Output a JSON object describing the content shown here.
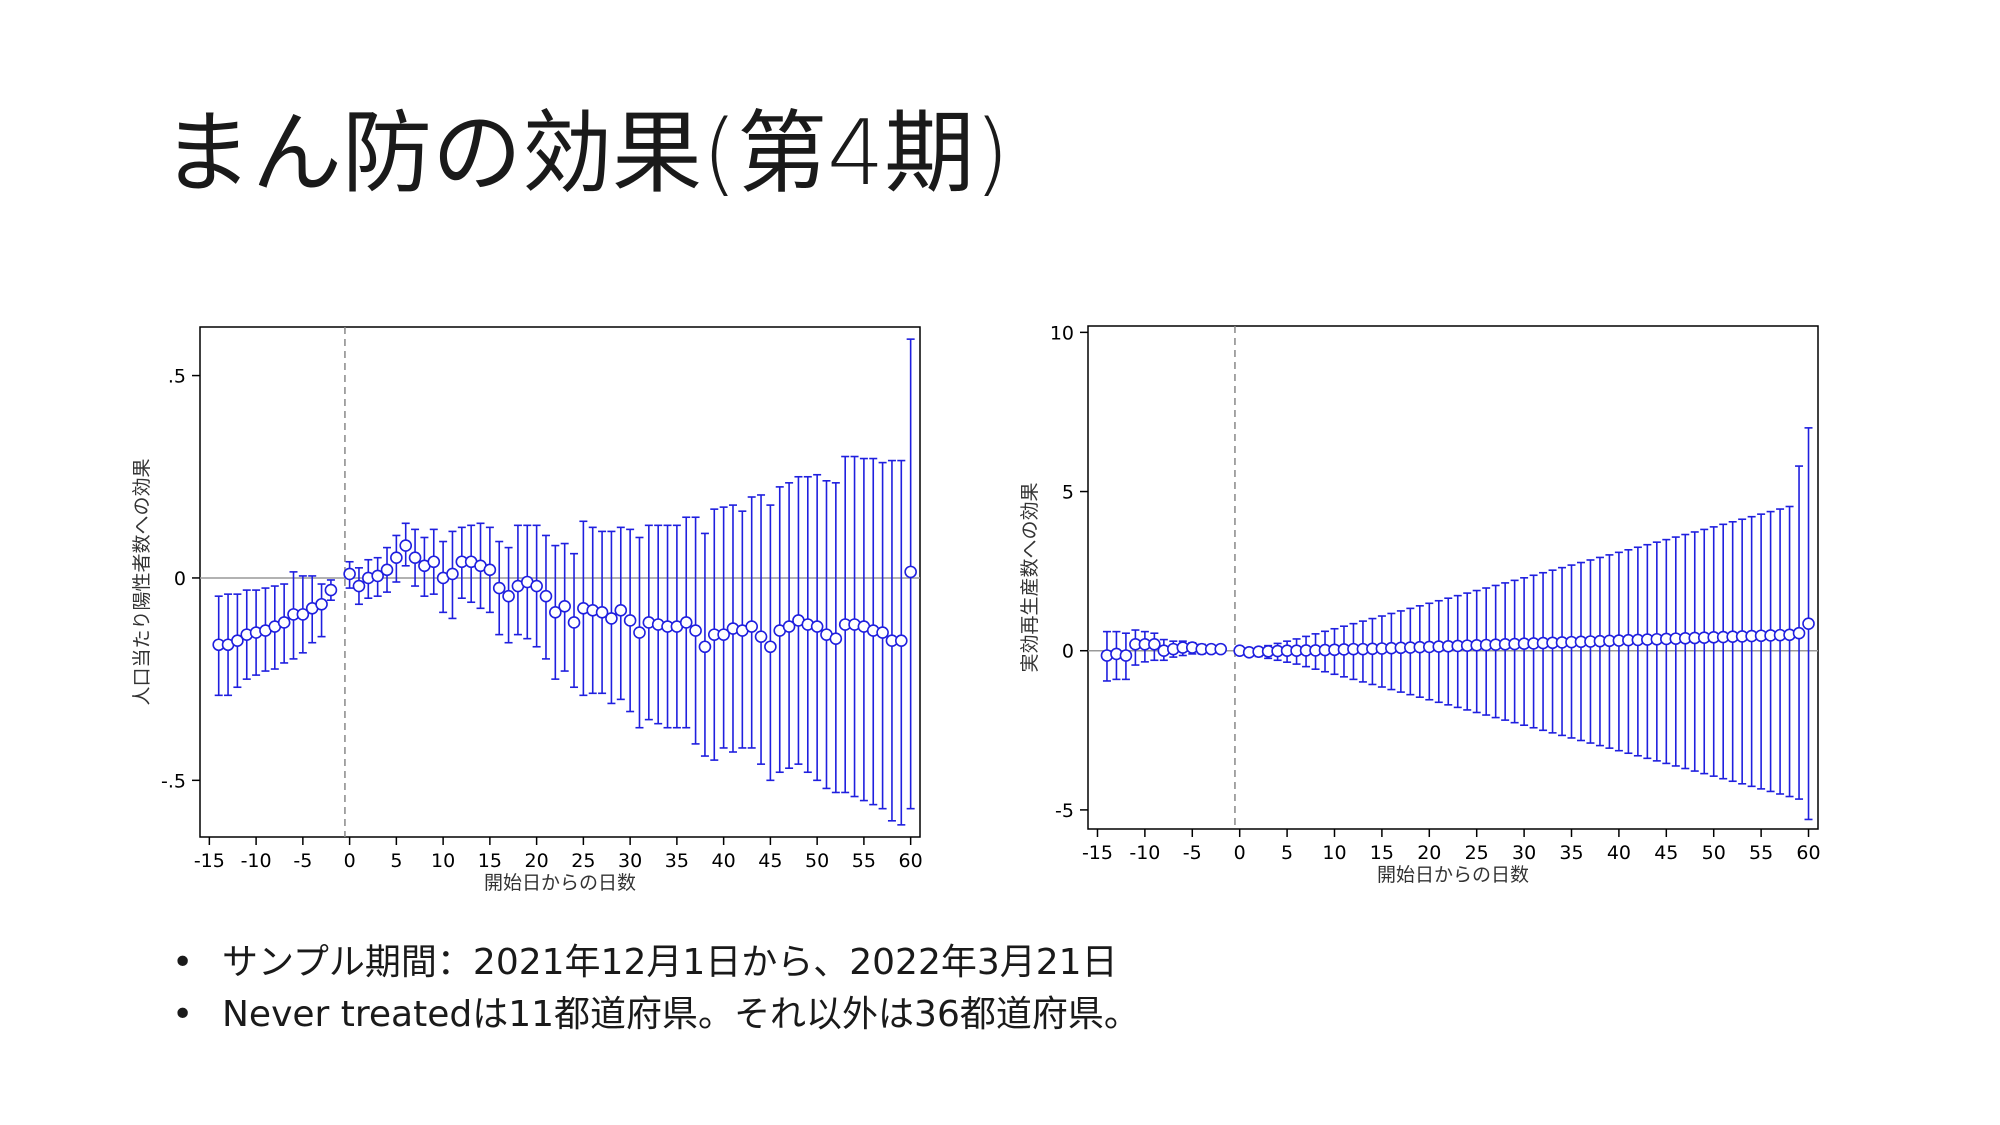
{
  "slide": {
    "title": "まん防の効果(第4期)"
  },
  "notes": [
    "サンプル期間：2021年12月1日から、2022年3月21日",
    "Never treatedは11都道府県。それ以外は36都道府県。"
  ],
  "colors": {
    "series": "#1f1fdf",
    "zero_line": "#999999",
    "event_line": "#888888",
    "axis": "#000000"
  },
  "chart_data": [
    {
      "type": "scatter",
      "xlabel": "開始日からの日数",
      "ylabel": "人口当たり陽性者数への効果",
      "xlim": [
        -16,
        61
      ],
      "ylim": [
        -0.64,
        0.62
      ],
      "x_ticks": [
        -15,
        -10,
        -5,
        0,
        5,
        10,
        15,
        20,
        25,
        30,
        35,
        40,
        45,
        50,
        55,
        60
      ],
      "x_tick_labels": [
        "-15",
        "-10",
        "-5",
        "0",
        "5",
        "10",
        "15",
        "20",
        "25",
        "30",
        "35",
        "40",
        "45",
        "50",
        "55",
        "60"
      ],
      "y_ticks": [
        -0.5,
        0,
        0.5
      ],
      "y_tick_labels": [
        "-.5",
        "0",
        ".5"
      ],
      "event_line_x": -0.5,
      "reference_y": 0,
      "x": [
        -14,
        -13,
        -12,
        -11,
        -10,
        -9,
        -8,
        -7,
        -6,
        -5,
        -4,
        -3,
        -2,
        0,
        1,
        2,
        3,
        4,
        5,
        6,
        7,
        8,
        9,
        10,
        11,
        12,
        13,
        14,
        15,
        16,
        17,
        18,
        19,
        20,
        21,
        22,
        23,
        24,
        25,
        26,
        27,
        28,
        29,
        30,
        31,
        32,
        33,
        34,
        35,
        36,
        37,
        38,
        39,
        40,
        41,
        42,
        43,
        44,
        45,
        46,
        47,
        48,
        49,
        50,
        51,
        52,
        53,
        54,
        55,
        56,
        57,
        58,
        59,
        60
      ],
      "values": [
        -0.165,
        -0.165,
        -0.155,
        -0.14,
        -0.135,
        -0.13,
        -0.12,
        -0.11,
        -0.09,
        -0.09,
        -0.075,
        -0.065,
        -0.03,
        0.01,
        -0.02,
        0.0,
        0.005,
        0.02,
        0.05,
        0.08,
        0.05,
        0.03,
        0.04,
        0.0,
        0.01,
        0.04,
        0.04,
        0.03,
        0.02,
        -0.025,
        -0.045,
        -0.02,
        -0.01,
        -0.02,
        -0.045,
        -0.085,
        -0.07,
        -0.11,
        -0.075,
        -0.08,
        -0.085,
        -0.1,
        -0.08,
        -0.105,
        -0.135,
        -0.11,
        -0.115,
        -0.12,
        -0.12,
        -0.11,
        -0.13,
        -0.17,
        -0.14,
        -0.14,
        -0.125,
        -0.13,
        -0.12,
        -0.145,
        -0.17,
        -0.13,
        -0.12,
        -0.105,
        -0.115,
        -0.12,
        -0.14,
        -0.15,
        -0.115,
        -0.115,
        -0.12,
        -0.13,
        -0.135,
        -0.155,
        -0.155,
        0.015
      ],
      "ci_low": [
        -0.29,
        -0.29,
        -0.27,
        -0.25,
        -0.24,
        -0.23,
        -0.225,
        -0.21,
        -0.2,
        -0.185,
        -0.16,
        -0.145,
        -0.055,
        -0.025,
        -0.065,
        -0.05,
        -0.045,
        -0.035,
        -0.01,
        0.03,
        -0.02,
        -0.045,
        -0.04,
        -0.085,
        -0.1,
        -0.05,
        -0.06,
        -0.075,
        -0.085,
        -0.14,
        -0.16,
        -0.14,
        -0.15,
        -0.17,
        -0.2,
        -0.25,
        -0.23,
        -0.27,
        -0.29,
        -0.285,
        -0.285,
        -0.31,
        -0.3,
        -0.33,
        -0.37,
        -0.35,
        -0.36,
        -0.37,
        -0.37,
        -0.37,
        -0.41,
        -0.44,
        -0.45,
        -0.42,
        -0.43,
        -0.42,
        -0.42,
        -0.46,
        -0.5,
        -0.48,
        -0.47,
        -0.46,
        -0.48,
        -0.5,
        -0.52,
        -0.53,
        -0.53,
        -0.54,
        -0.55,
        -0.56,
        -0.57,
        -0.6,
        -0.61,
        -0.57
      ],
      "ci_high": [
        -0.045,
        -0.04,
        -0.04,
        -0.03,
        -0.03,
        -0.025,
        -0.02,
        -0.015,
        0.015,
        0.005,
        0.005,
        -0.015,
        -0.005,
        0.04,
        0.025,
        0.045,
        0.05,
        0.075,
        0.105,
        0.135,
        0.12,
        0.1,
        0.12,
        0.09,
        0.115,
        0.125,
        0.13,
        0.135,
        0.125,
        0.09,
        0.075,
        0.13,
        0.13,
        0.13,
        0.105,
        0.08,
        0.085,
        0.06,
        0.14,
        0.125,
        0.115,
        0.115,
        0.125,
        0.12,
        0.1,
        0.13,
        0.13,
        0.13,
        0.13,
        0.15,
        0.15,
        0.11,
        0.17,
        0.175,
        0.18,
        0.165,
        0.2,
        0.205,
        0.18,
        0.225,
        0.235,
        0.25,
        0.25,
        0.255,
        0.24,
        0.235,
        0.3,
        0.3,
        0.295,
        0.295,
        0.285,
        0.29,
        0.29,
        0.59
      ]
    },
    {
      "type": "scatter",
      "xlabel": "開始日からの日数",
      "ylabel": "実効再生産数への効果",
      "xlim": [
        -16,
        61
      ],
      "ylim": [
        -5.6,
        10.2
      ],
      "x_ticks": [
        -15,
        -10,
        -5,
        0,
        5,
        10,
        15,
        20,
        25,
        30,
        35,
        40,
        45,
        50,
        55,
        60
      ],
      "x_tick_labels": [
        "-15",
        "-10",
        "-5",
        "0",
        "5",
        "10",
        "15",
        "20",
        "25",
        "30",
        "35",
        "40",
        "45",
        "50",
        "55",
        "60"
      ],
      "y_ticks": [
        -5,
        0,
        5,
        10
      ],
      "y_tick_labels": [
        "-5",
        "0",
        "5",
        "10"
      ],
      "event_line_x": -0.5,
      "reference_y": 0,
      "x": [
        -14,
        -13,
        -12,
        -11,
        -10,
        -9,
        -8,
        -7,
        -6,
        -5,
        -4,
        -3,
        -2,
        0,
        1,
        2,
        3,
        4,
        5,
        6,
        7,
        8,
        9,
        10,
        11,
        12,
        13,
        14,
        15,
        16,
        17,
        18,
        19,
        20,
        21,
        22,
        23,
        24,
        25,
        26,
        27,
        28,
        29,
        30,
        31,
        32,
        33,
        34,
        35,
        36,
        37,
        38,
        39,
        40,
        41,
        42,
        43,
        44,
        45,
        46,
        47,
        48,
        49,
        50,
        51,
        52,
        53,
        54,
        55,
        56,
        57,
        58,
        59,
        60
      ],
      "values": [
        -0.15,
        -0.1,
        -0.15,
        0.2,
        0.2,
        0.2,
        0.0,
        0.05,
        0.1,
        0.1,
        0.05,
        0.05,
        0.05,
        0.0,
        -0.05,
        -0.03,
        -0.02,
        -0.01,
        0.0,
        0.0,
        0.01,
        0.01,
        0.02,
        0.03,
        0.04,
        0.05,
        0.05,
        0.06,
        0.07,
        0.08,
        0.09,
        0.1,
        0.11,
        0.12,
        0.13,
        0.14,
        0.15,
        0.16,
        0.17,
        0.18,
        0.19,
        0.2,
        0.21,
        0.22,
        0.23,
        0.24,
        0.25,
        0.26,
        0.27,
        0.28,
        0.29,
        0.3,
        0.31,
        0.32,
        0.33,
        0.34,
        0.35,
        0.36,
        0.37,
        0.38,
        0.39,
        0.4,
        0.41,
        0.42,
        0.43,
        0.44,
        0.45,
        0.46,
        0.47,
        0.48,
        0.49,
        0.5,
        0.55,
        0.85
      ],
      "ci_low": [
        -0.95,
        -0.9,
        -0.9,
        -0.45,
        -0.35,
        -0.3,
        -0.3,
        -0.2,
        -0.15,
        -0.1,
        -0.1,
        -0.05,
        -0.02,
        -0.03,
        -0.12,
        -0.18,
        -0.24,
        -0.3,
        -0.36,
        -0.42,
        -0.5,
        -0.58,
        -0.66,
        -0.74,
        -0.82,
        -0.9,
        -0.98,
        -1.06,
        -1.14,
        -1.22,
        -1.3,
        -1.38,
        -1.46,
        -1.54,
        -1.62,
        -1.7,
        -1.78,
        -1.86,
        -1.94,
        -2.02,
        -2.1,
        -2.18,
        -2.26,
        -2.34,
        -2.42,
        -2.5,
        -2.58,
        -2.66,
        -2.74,
        -2.82,
        -2.9,
        -2.98,
        -3.06,
        -3.14,
        -3.22,
        -3.3,
        -3.38,
        -3.46,
        -3.54,
        -3.62,
        -3.7,
        -3.78,
        -3.86,
        -3.94,
        -4.02,
        -4.1,
        -4.18,
        -4.26,
        -4.34,
        -4.42,
        -4.5,
        -4.58,
        -4.66,
        -5.3
      ],
      "ci_high": [
        0.6,
        0.6,
        0.55,
        0.65,
        0.6,
        0.55,
        0.35,
        0.3,
        0.3,
        0.25,
        0.2,
        0.15,
        0.1,
        0.03,
        0.03,
        0.09,
        0.16,
        0.23,
        0.3,
        0.37,
        0.45,
        0.53,
        0.61,
        0.69,
        0.77,
        0.85,
        0.93,
        1.01,
        1.09,
        1.17,
        1.25,
        1.33,
        1.41,
        1.49,
        1.57,
        1.65,
        1.73,
        1.81,
        1.89,
        1.97,
        2.05,
        2.13,
        2.21,
        2.29,
        2.37,
        2.45,
        2.53,
        2.61,
        2.69,
        2.77,
        2.85,
        2.93,
        3.01,
        3.09,
        3.17,
        3.25,
        3.33,
        3.41,
        3.49,
        3.57,
        3.65,
        3.73,
        3.81,
        3.89,
        3.97,
        4.05,
        4.13,
        4.21,
        4.29,
        4.37,
        4.45,
        4.53,
        5.8,
        7.0
      ]
    }
  ]
}
